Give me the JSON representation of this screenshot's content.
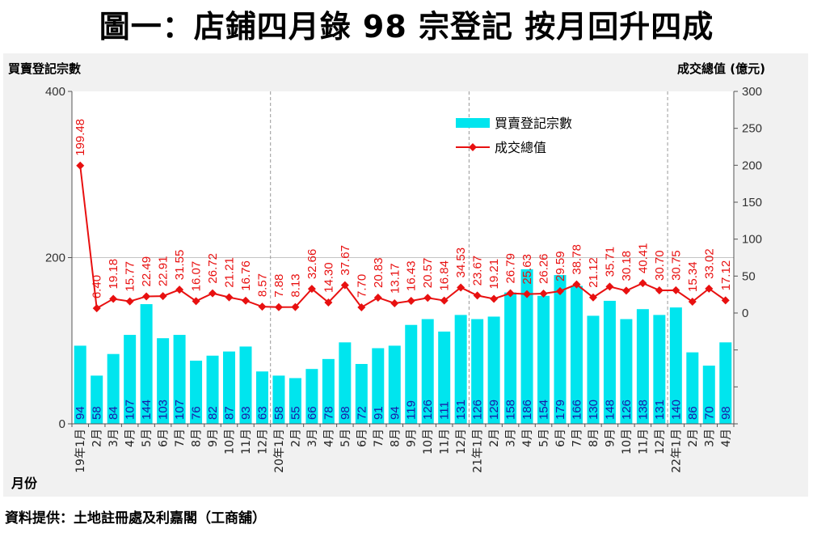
{
  "title": "圖一：店鋪四月錄 98 宗登記  按月回升四成",
  "source": "資料提供：土地註冊處及利嘉閣（工商舖）",
  "colors": {
    "bar": "#00e5ee",
    "line": "#e81010",
    "grid": "#c4c4c4"
  },
  "chart_data": {
    "type": "bar+line",
    "left_axis_label": "買賣登記宗數",
    "right_axis_label": "成交總值 (億元)",
    "x_axis_label": "月份",
    "left_ylim": [
      0,
      400
    ],
    "left_ticks": [
      "0",
      "200",
      "400"
    ],
    "right_ylim": [
      -150,
      300
    ],
    "right_ticks": [
      "0",
      "50",
      "100",
      "150",
      "200",
      "250",
      "300"
    ],
    "legend": [
      "買賣登記宗數",
      "成交總值"
    ],
    "categories": [
      "19年1月",
      "2月",
      "3月",
      "4月",
      "5月",
      "6月",
      "7月",
      "8月",
      "9月",
      "10月",
      "11月",
      "12月",
      "20年1月",
      "2月",
      "3月",
      "4月",
      "5月",
      "6月",
      "7月",
      "8月",
      "9月",
      "10月",
      "11月",
      "12月",
      "21年1月",
      "2月",
      "3月",
      "4月",
      "5月",
      "6月",
      "7月",
      "8月",
      "9月",
      "10月",
      "11月",
      "12月",
      "22年1月",
      "2月",
      "3月",
      "4月"
    ],
    "bar_values": [
      94,
      58,
      84,
      107,
      144,
      103,
      107,
      76,
      82,
      87,
      93,
      63,
      58,
      55,
      66,
      78,
      98,
      72,
      91,
      94,
      119,
      126,
      111,
      131,
      126,
      129,
      158,
      186,
      154,
      179,
      166,
      130,
      148,
      126,
      138,
      131,
      140,
      86,
      70,
      98
    ],
    "bar_labels": [
      "94",
      "58",
      "84",
      "107",
      "144",
      "103",
      "107",
      "76",
      "82",
      "87",
      "93",
      "63",
      "58",
      "55",
      "66",
      "78",
      "98",
      "72",
      "91",
      "94",
      "119",
      "126",
      "111",
      "131",
      "126",
      "129",
      "158",
      "186",
      "154",
      "179",
      "166",
      "130",
      "148",
      "126",
      "138",
      "131",
      "140",
      "86",
      "70",
      "98"
    ],
    "line_values": [
      199.48,
      6.4,
      19.18,
      15.77,
      22.49,
      22.91,
      31.55,
      16.07,
      26.72,
      21.21,
      16.76,
      8.57,
      7.88,
      8.13,
      32.66,
      14.3,
      37.67,
      7.7,
      20.83,
      13.17,
      16.43,
      20.57,
      16.84,
      34.53,
      23.67,
      19.21,
      26.79,
      25.63,
      26.26,
      29.59,
      38.78,
      21.12,
      35.71,
      30.18,
      40.41,
      30.7,
      30.75,
      15.34,
      33.02,
      17.12
    ],
    "line_labels": [
      "199.48",
      "6.40",
      "19.18",
      "15.77",
      "22.49",
      "22.91",
      "31.55",
      "16.07",
      "26.72",
      "21.21",
      "16.76",
      "8.57",
      "7.88",
      "8.13",
      "32.66",
      "14.30",
      "37.67",
      "7.70",
      "20.83",
      "13.17",
      "16.43",
      "20.57",
      "16.84",
      "34.53",
      "23.67",
      "19.21",
      "26.79",
      "25.63",
      "26.26",
      "29.59",
      "38.78",
      "21.12",
      "35.71",
      "30.18",
      "40.41",
      "30.70",
      "30.75",
      "15.34",
      "33.02",
      "17.12"
    ],
    "year_separators_after": [
      11,
      23,
      35
    ]
  }
}
